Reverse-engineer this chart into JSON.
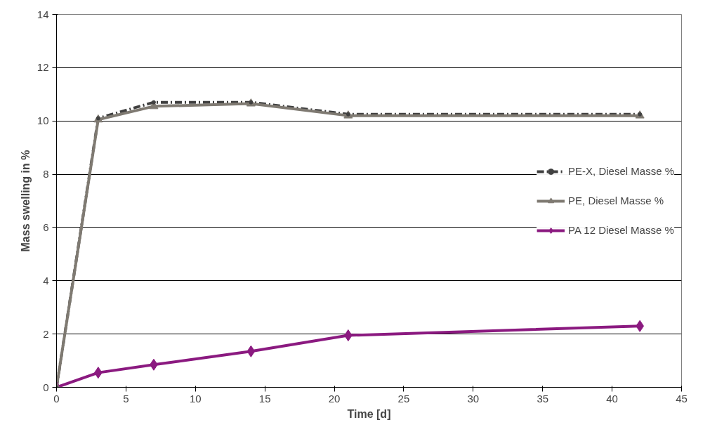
{
  "chart_data": {
    "type": "line",
    "xlabel": "Time [d]",
    "ylabel": "Mass swelling in %",
    "x": [
      0,
      3,
      7,
      14,
      21,
      42
    ],
    "series": [
      {
        "name": "PE-X, Diesel Masse %",
        "color": "#404040",
        "values": [
          0,
          10.1,
          10.7,
          10.7,
          10.25,
          10.25
        ],
        "marker": "circle",
        "line_style": "dashed"
      },
      {
        "name": "PE, Diesel Masse %",
        "color": "#7f7a72",
        "values": [
          0,
          10.05,
          10.55,
          10.65,
          10.2,
          10.2
        ],
        "marker": "triangle",
        "line_style": "solid"
      },
      {
        "name": "PA 12 Diesel Masse %",
        "color": "#8b1a80",
        "values": [
          0,
          0.55,
          0.85,
          1.35,
          1.95,
          2.3
        ],
        "marker": "diamond",
        "line_style": "solid"
      }
    ],
    "xlim": [
      0,
      45
    ],
    "xticks": [
      0,
      5,
      10,
      15,
      20,
      25,
      30,
      35,
      40,
      45
    ],
    "ylim": [
      0,
      14
    ],
    "yticks": [
      0,
      2,
      4,
      6,
      8,
      10,
      12,
      14
    ],
    "grid": "y",
    "legend": "right"
  }
}
